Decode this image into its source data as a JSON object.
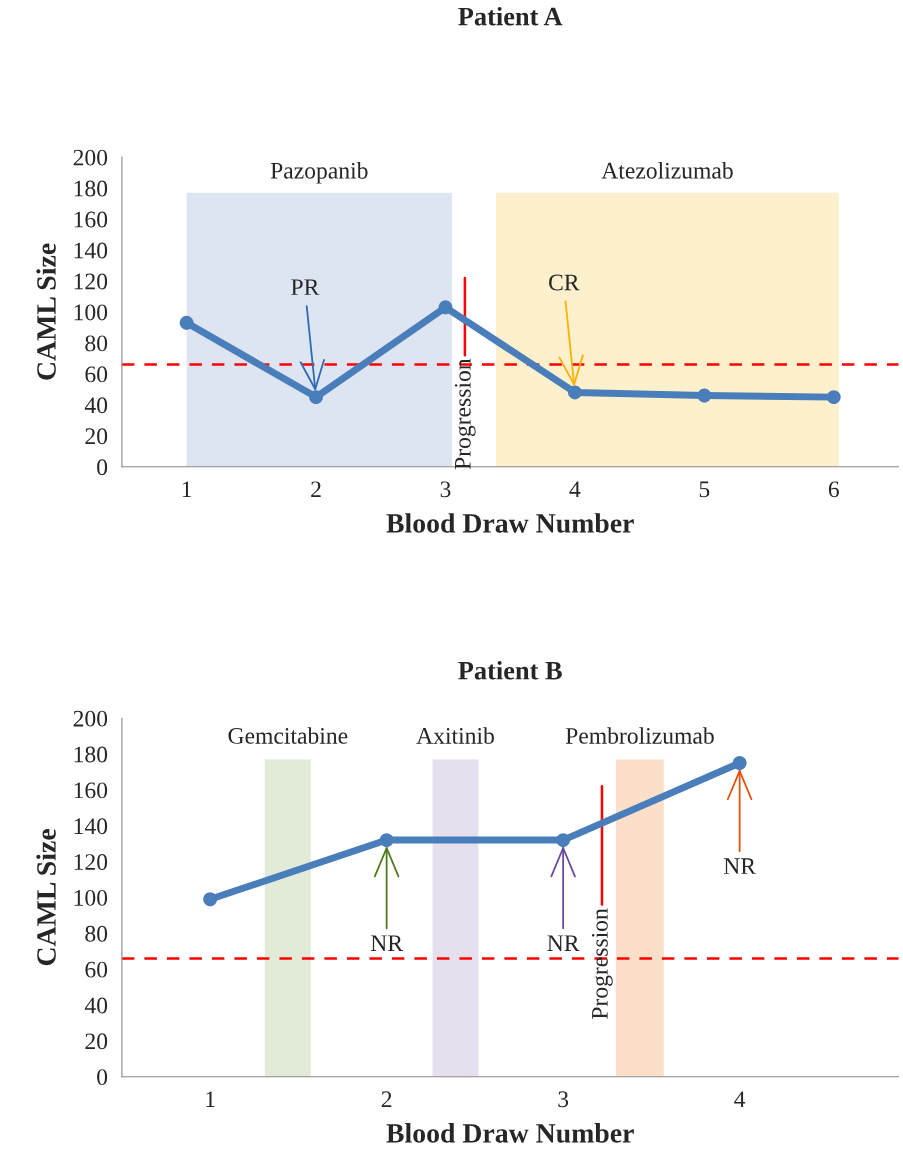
{
  "chart_data": [
    {
      "type": "line",
      "title": "Patient A",
      "xlabel": "Blood Draw Number",
      "ylabel": "CAML Size",
      "x": [
        1,
        2,
        3,
        4,
        5,
        6
      ],
      "series": [
        {
          "color": "#4a7ebb",
          "values": [
            93,
            45,
            103,
            48,
            46,
            45
          ]
        }
      ],
      "marker": "circle",
      "line_style": "solid",
      "xlim": [
        0.5,
        6.5
      ],
      "xticks": [
        1,
        2,
        3,
        4,
        5,
        6
      ],
      "ylim": [
        0,
        200
      ],
      "yticks": [
        0,
        20,
        40,
        60,
        80,
        100,
        120,
        140,
        160,
        180,
        200
      ],
      "grid": false,
      "legend": false,
      "bands": [
        {
          "axis": "x",
          "from": 1.0,
          "to": 3.05,
          "label": "Pazopanib",
          "color": "#dde5f2"
        },
        {
          "axis": "x",
          "from": 3.39,
          "to": 6.04,
          "label": "Atezolizumab",
          "color": "#fdf0cc"
        }
      ],
      "ref_lines": [
        {
          "axis": "y",
          "value": 66,
          "color": "#ff0000",
          "line_style": "dashed"
        },
        {
          "axis": "x",
          "value": 3.15,
          "label": "Progression",
          "color": "#ff0000",
          "line_style": "solid"
        }
      ],
      "annotations": [
        {
          "text": "PR",
          "x": 2,
          "y": 45
        },
        {
          "text": "CR",
          "x": 4,
          "y": 48
        }
      ]
    },
    {
      "type": "line",
      "title": "Patient B",
      "xlabel": "Blood Draw Number",
      "ylabel": "CAML Size",
      "x": [
        1,
        2,
        3,
        4
      ],
      "series": [
        {
          "color": "#4a7ebb",
          "values": [
            99,
            132,
            132,
            175
          ]
        }
      ],
      "marker": "circle",
      "line_style": "solid",
      "xlim": [
        0.5,
        4.9
      ],
      "xticks": [
        1,
        2,
        3,
        4
      ],
      "ylim": [
        0,
        200
      ],
      "yticks": [
        0,
        20,
        40,
        60,
        80,
        100,
        120,
        140,
        160,
        180,
        200
      ],
      "grid": false,
      "legend": false,
      "bands": [
        {
          "axis": "x",
          "from": 1.31,
          "to": 1.57,
          "label": "Gemcitabine",
          "color": "#e2ead8"
        },
        {
          "axis": "x",
          "from": 2.26,
          "to": 2.52,
          "label": "Axitinib",
          "color": "#e6e0ee"
        },
        {
          "axis": "x",
          "from": 3.3,
          "to": 3.57,
          "label": "Pembrolizumab",
          "color": "#fbdfc8"
        }
      ],
      "ref_lines": [
        {
          "axis": "y",
          "value": 66,
          "color": "#ff0000",
          "line_style": "dashed"
        },
        {
          "axis": "x",
          "value": 3.22,
          "label": "Progression",
          "color": "#ff0000",
          "line_style": "solid"
        }
      ],
      "annotations": [
        {
          "text": "NR",
          "x": 2,
          "y": 132
        },
        {
          "text": "NR",
          "x": 3,
          "y": 132
        },
        {
          "text": "NR",
          "x": 4,
          "y": 175
        }
      ]
    }
  ]
}
